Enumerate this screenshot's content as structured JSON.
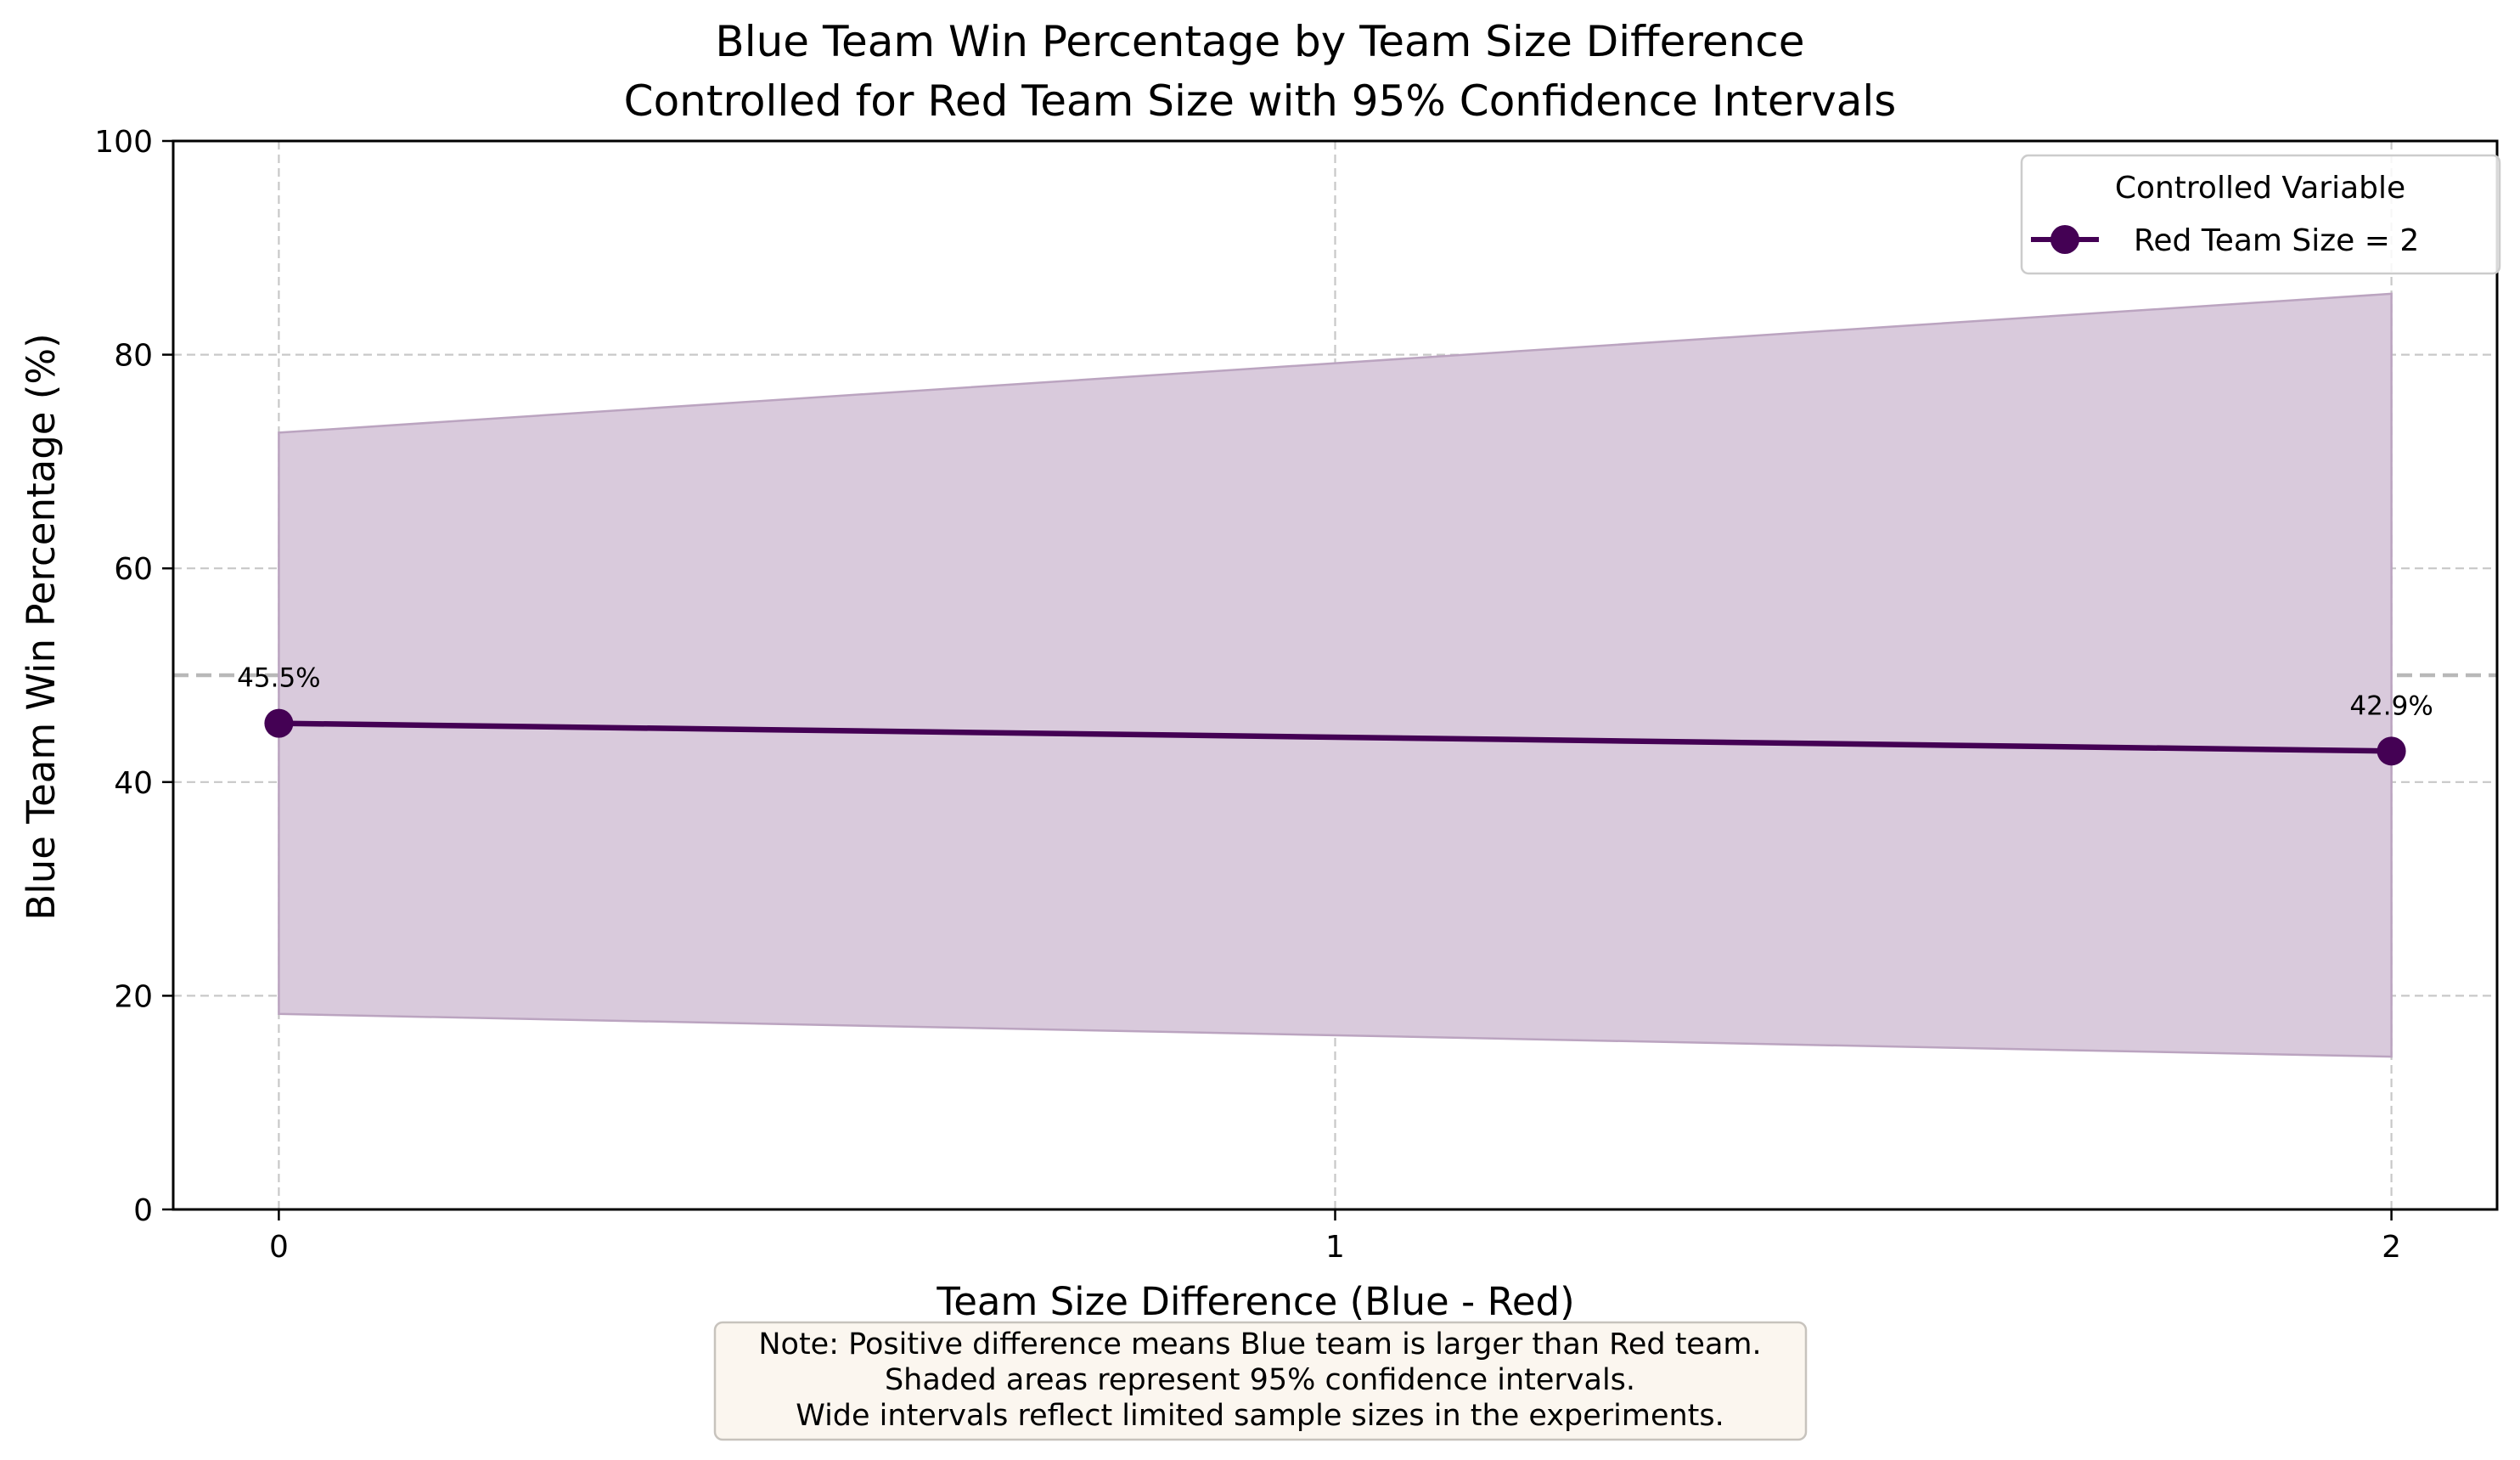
{
  "chart_data": {
    "type": "line",
    "title": "Blue Team Win Percentage by Team Size Difference",
    "subtitle": "Controlled for Red Team Size with 95% Confidence Intervals",
    "xlabel": "Team Size Difference (Blue - Red)",
    "ylabel": "Blue Team Win Percentage (%)",
    "xlim": [
      -0.1,
      2.1
    ],
    "ylim": [
      0,
      100
    ],
    "x_ticks": [
      0,
      1,
      2
    ],
    "y_ticks": [
      0,
      20,
      40,
      60,
      80,
      100
    ],
    "grid": true,
    "legend": {
      "title": "Controlled Variable",
      "position": "top-right"
    },
    "reference_line": {
      "y": 50,
      "style": "dashed"
    },
    "series": [
      {
        "name": "Red Team Size = 2",
        "x": [
          0,
          2
        ],
        "y": [
          45.5,
          42.9
        ],
        "ci_lower": [
          18.3,
          14.3
        ],
        "ci_upper": [
          72.7,
          85.7
        ],
        "data_labels": [
          "45.5%",
          "42.9%"
        ],
        "color": "#440154",
        "fill_color": "#d9cadc",
        "fill_edge_color": "#bba4c0"
      }
    ],
    "note": [
      "Note: Positive difference means Blue team is larger than Red team.",
      "Shaded areas represent 95% confidence intervals.",
      "Wide intervals reflect limited sample sizes in the experiments."
    ]
  },
  "colors": {
    "grid": "#c8c8c8",
    "reference_line": "#b8b8b8",
    "axis": "#000000",
    "note_background": "#fbf6ef",
    "note_border": "#c7c3bd",
    "legend_border": "#cccccc"
  }
}
